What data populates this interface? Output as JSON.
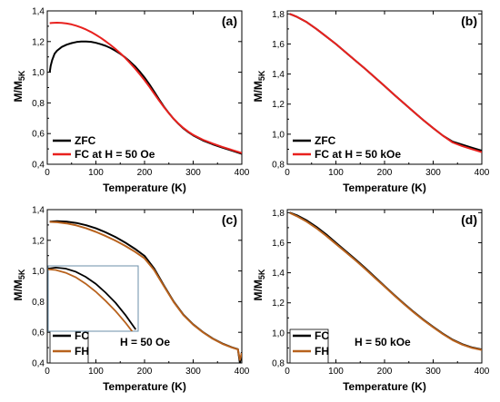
{
  "chart_data": [
    {
      "panel": "(a)",
      "type": "line",
      "xlabel": "Temperature (K)",
      "ylabel": "M/M",
      "ylabel_sub": "5K",
      "xlim": [
        0,
        400
      ],
      "ylim": [
        0.4,
        1.4
      ],
      "xticks": [
        0,
        100,
        200,
        300,
        400
      ],
      "yticks": [
        0.4,
        0.6,
        0.8,
        1.0,
        1.2,
        1.4
      ],
      "ytick_labels": [
        "0,4",
        "0,6",
        "0,8",
        "1,0",
        "1,2",
        "1,4"
      ],
      "legend_position": "bottom-left",
      "annotation": "",
      "series": [
        {
          "name": "ZFC",
          "color": "#000000",
          "x": [
            5,
            7,
            10,
            15,
            20,
            30,
            40,
            50,
            60,
            70,
            80,
            90,
            100,
            110,
            120,
            130,
            140,
            150,
            160,
            170,
            180,
            190,
            200,
            210,
            220,
            230,
            240,
            250,
            260,
            270,
            280,
            290,
            300,
            320,
            340,
            360,
            380,
            400
          ],
          "y": [
            1.0,
            1.04,
            1.08,
            1.12,
            1.14,
            1.165,
            1.18,
            1.19,
            1.197,
            1.2,
            1.2,
            1.198,
            1.192,
            1.183,
            1.172,
            1.158,
            1.14,
            1.12,
            1.097,
            1.07,
            1.04,
            1.005,
            0.965,
            0.92,
            0.872,
            0.822,
            0.775,
            0.733,
            0.695,
            0.662,
            0.633,
            0.609,
            0.588,
            0.555,
            0.53,
            0.508,
            0.488,
            0.468
          ]
        },
        {
          "name": "FC at H = 50 Oe",
          "color": "#e8211e",
          "x": [
            5,
            10,
            20,
            30,
            40,
            50,
            60,
            70,
            80,
            90,
            100,
            110,
            120,
            130,
            140,
            150,
            160,
            170,
            180,
            190,
            200,
            210,
            220,
            230,
            240,
            250,
            260,
            270,
            280,
            290,
            300,
            320,
            340,
            360,
            380,
            400
          ],
          "y": [
            1.32,
            1.322,
            1.323,
            1.322,
            1.318,
            1.312,
            1.303,
            1.292,
            1.278,
            1.262,
            1.244,
            1.224,
            1.202,
            1.178,
            1.152,
            1.124,
            1.094,
            1.061,
            1.026,
            0.988,
            0.948,
            0.905,
            0.86,
            0.815,
            0.772,
            0.732,
            0.696,
            0.664,
            0.636,
            0.612,
            0.592,
            0.56,
            0.535,
            0.513,
            0.493,
            0.473
          ]
        }
      ]
    },
    {
      "panel": "(b)",
      "type": "line",
      "xlabel": "Temperature (K)",
      "ylabel": "M/M",
      "ylabel_sub": "5K",
      "xlim": [
        0,
        400
      ],
      "ylim": [
        0.8,
        1.82
      ],
      "xticks": [
        0,
        100,
        200,
        300,
        400
      ],
      "yticks": [
        0.8,
        1.0,
        1.2,
        1.4,
        1.6,
        1.8
      ],
      "ytick_labels": [
        "0,8",
        "1,0",
        "1,2",
        "1,4",
        "1,6",
        "1,8"
      ],
      "legend_position": "bottom-left",
      "annotation": "",
      "series": [
        {
          "name": "ZFC",
          "color": "#000000",
          "x": [
            5,
            20,
            40,
            60,
            80,
            100,
            120,
            140,
            160,
            180,
            200,
            220,
            240,
            260,
            280,
            300,
            320,
            340,
            360,
            380,
            400
          ],
          "y": [
            1.8,
            1.78,
            1.745,
            1.7,
            1.65,
            1.6,
            1.545,
            1.49,
            1.435,
            1.378,
            1.32,
            1.262,
            1.205,
            1.148,
            1.093,
            1.04,
            0.99,
            0.95,
            0.93,
            0.91,
            0.89
          ]
        },
        {
          "name": "FC at H = 50 kOe",
          "color": "#e8211e",
          "x": [
            5,
            20,
            40,
            60,
            80,
            100,
            120,
            140,
            160,
            180,
            200,
            220,
            240,
            260,
            280,
            300,
            320,
            340,
            360,
            380,
            400
          ],
          "y": [
            1.8,
            1.78,
            1.745,
            1.7,
            1.65,
            1.6,
            1.545,
            1.49,
            1.435,
            1.378,
            1.32,
            1.262,
            1.205,
            1.148,
            1.093,
            1.04,
            0.99,
            0.945,
            0.92,
            0.9,
            0.88
          ]
        }
      ]
    },
    {
      "panel": "(c)",
      "type": "line",
      "xlabel": "Temperature (K)",
      "ylabel": "M/M",
      "ylabel_sub": "5K",
      "xlim": [
        0,
        400
      ],
      "ylim": [
        0.4,
        1.4
      ],
      "xticks": [
        0,
        100,
        200,
        300,
        400
      ],
      "yticks": [
        0.4,
        0.6,
        0.8,
        1.0,
        1.2,
        1.4
      ],
      "ytick_labels": [
        "0,4",
        "0,6",
        "0,8",
        "1,0",
        "1,2",
        "1,4"
      ],
      "legend_position": "bottom-left",
      "annotation": "H = 50 Oe",
      "series": [
        {
          "name": "FC",
          "color": "#000000",
          "x": [
            5,
            20,
            40,
            60,
            80,
            100,
            120,
            140,
            160,
            180,
            200,
            220,
            240,
            260,
            280,
            300,
            320,
            340,
            360,
            380,
            392,
            396,
            400
          ],
          "y": [
            1.322,
            1.325,
            1.322,
            1.313,
            1.298,
            1.278,
            1.252,
            1.222,
            1.186,
            1.145,
            1.098,
            1.015,
            0.905,
            0.8,
            0.715,
            0.652,
            0.602,
            0.56,
            0.527,
            0.502,
            0.49,
            0.4,
            0.47
          ]
        },
        {
          "name": "FH",
          "color": "#b8621d",
          "x": [
            5,
            20,
            40,
            60,
            80,
            100,
            120,
            140,
            160,
            180,
            200,
            220,
            240,
            260,
            280,
            300,
            320,
            340,
            360,
            380,
            392,
            396,
            400
          ],
          "y": [
            1.32,
            1.318,
            1.31,
            1.297,
            1.278,
            1.255,
            1.228,
            1.198,
            1.164,
            1.126,
            1.082,
            1.005,
            0.9,
            0.797,
            0.712,
            0.65,
            0.6,
            0.558,
            0.525,
            0.5,
            0.488,
            0.42,
            0.465
          ]
        }
      ]
    },
    {
      "panel": "(d)",
      "type": "line",
      "xlabel": "Temperature (K)",
      "ylabel": "M/M",
      "ylabel_sub": "5K",
      "xlim": [
        0,
        400
      ],
      "ylim": [
        0.8,
        1.82
      ],
      "xticks": [
        0,
        100,
        200,
        300,
        400
      ],
      "yticks": [
        0.8,
        1.0,
        1.2,
        1.4,
        1.6,
        1.8
      ],
      "ytick_labels": [
        "0,8",
        "1,0",
        "1,2",
        "1,4",
        "1,6",
        "1,8"
      ],
      "legend_position": "bottom-left",
      "annotation": "H = 50 kOe",
      "series": [
        {
          "name": "FC",
          "color": "#000000",
          "x": [
            5,
            20,
            40,
            60,
            80,
            100,
            120,
            140,
            160,
            180,
            200,
            220,
            240,
            260,
            280,
            300,
            320,
            340,
            360,
            380,
            400
          ],
          "y": [
            1.8,
            1.782,
            1.748,
            1.705,
            1.655,
            1.6,
            1.545,
            1.49,
            1.432,
            1.372,
            1.312,
            1.252,
            1.195,
            1.14,
            1.088,
            1.04,
            0.995,
            0.955,
            0.925,
            0.903,
            0.89
          ]
        },
        {
          "name": "FH",
          "color": "#b8621d",
          "x": [
            5,
            20,
            40,
            60,
            80,
            100,
            120,
            140,
            160,
            180,
            200,
            220,
            240,
            260,
            280,
            300,
            320,
            340,
            360,
            380,
            400
          ],
          "y": [
            1.798,
            1.776,
            1.74,
            1.696,
            1.646,
            1.592,
            1.538,
            1.483,
            1.426,
            1.367,
            1.308,
            1.249,
            1.192,
            1.137,
            1.085,
            1.037,
            0.992,
            0.952,
            0.922,
            0.9,
            0.887
          ]
        }
      ]
    }
  ],
  "inset": {
    "panel": "(c)",
    "note": "zoomed view of FC and FH curves",
    "series": [
      {
        "name": "FC",
        "color": "#000000",
        "x": [
          5,
          20,
          40,
          60,
          80,
          100,
          120,
          140,
          160,
          180
        ],
        "y": [
          1.322,
          1.325,
          1.322,
          1.313,
          1.298,
          1.278,
          1.252,
          1.222,
          1.186,
          1.145
        ]
      },
      {
        "name": "FH",
        "color": "#b8621d",
        "x": [
          5,
          20,
          40,
          60,
          80,
          100,
          120,
          140,
          160,
          180
        ],
        "y": [
          1.32,
          1.318,
          1.31,
          1.297,
          1.278,
          1.255,
          1.228,
          1.198,
          1.164,
          1.126
        ]
      }
    ]
  }
}
